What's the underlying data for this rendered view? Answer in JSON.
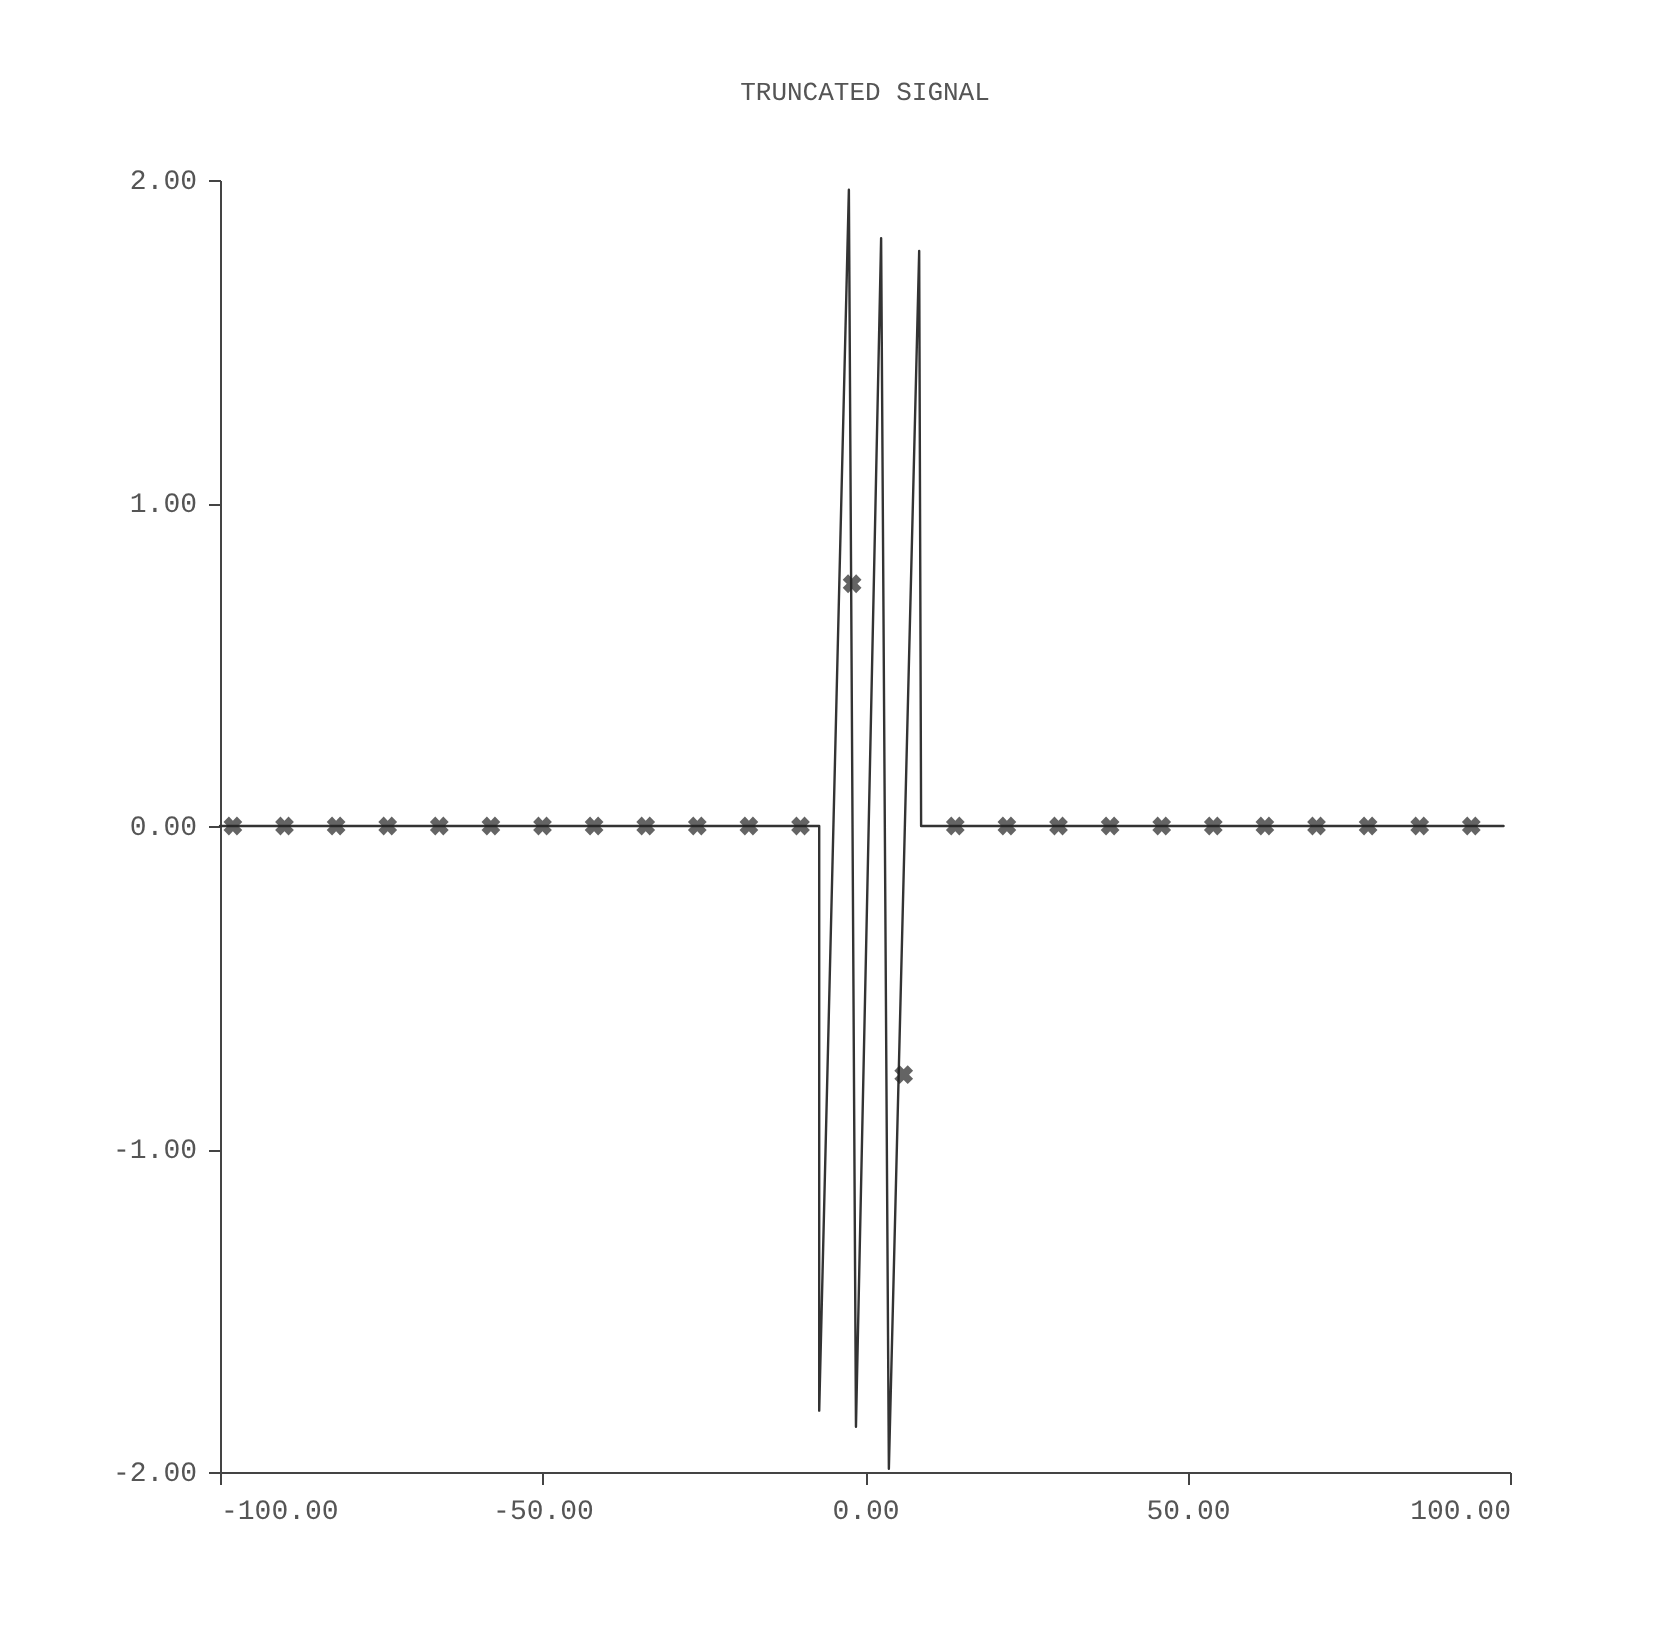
{
  "chart_data": {
    "type": "line",
    "title": "TRUNCATED SIGNAL",
    "xlim": [
      -100,
      100
    ],
    "xticks": [
      {
        "value": -100,
        "label": "-100.00"
      },
      {
        "value": -50,
        "label": "-50.00"
      },
      {
        "value": 0,
        "label": "0.00"
      },
      {
        "value": 50,
        "label": "50.00"
      },
      {
        "value": 100,
        "label": "100.00"
      }
    ],
    "ylim": [
      -2,
      2
    ],
    "yticks": [
      {
        "value": -2,
        "label": "-2.00"
      },
      {
        "value": -1,
        "label": "-1.00"
      },
      {
        "value": 0,
        "label": "0.00"
      },
      {
        "value": 1,
        "label": "1.00"
      },
      {
        "value": 2,
        "label": "2.00"
      }
    ],
    "grid": false,
    "line_style": "solid",
    "series": [
      {
        "color": "#333333",
        "marker": "none",
        "x": [
          -100,
          -7.1,
          -7.1,
          -2.5,
          -1.4,
          2.5,
          3.7,
          8.4,
          8.7,
          99
        ],
        "values": [
          0,
          0,
          -1.81,
          1.97,
          -1.86,
          1.82,
          -1.99,
          1.78,
          0,
          0
        ]
      },
      {
        "type": "scatter",
        "color": "#222222",
        "marker": "cross",
        "x": [
          -98,
          -90,
          -82,
          -74,
          -66,
          -58,
          -50,
          -42,
          -34,
          -26,
          -18,
          -10,
          -2,
          6,
          14,
          22,
          30,
          38,
          46,
          54,
          62,
          70,
          78,
          86,
          94
        ],
        "values": [
          0,
          0,
          0,
          0,
          0,
          0,
          0,
          0,
          0,
          0,
          0,
          0,
          0.75,
          -0.77,
          0,
          0,
          0,
          0,
          0,
          0,
          0,
          0,
          0,
          0,
          0
        ]
      }
    ]
  }
}
